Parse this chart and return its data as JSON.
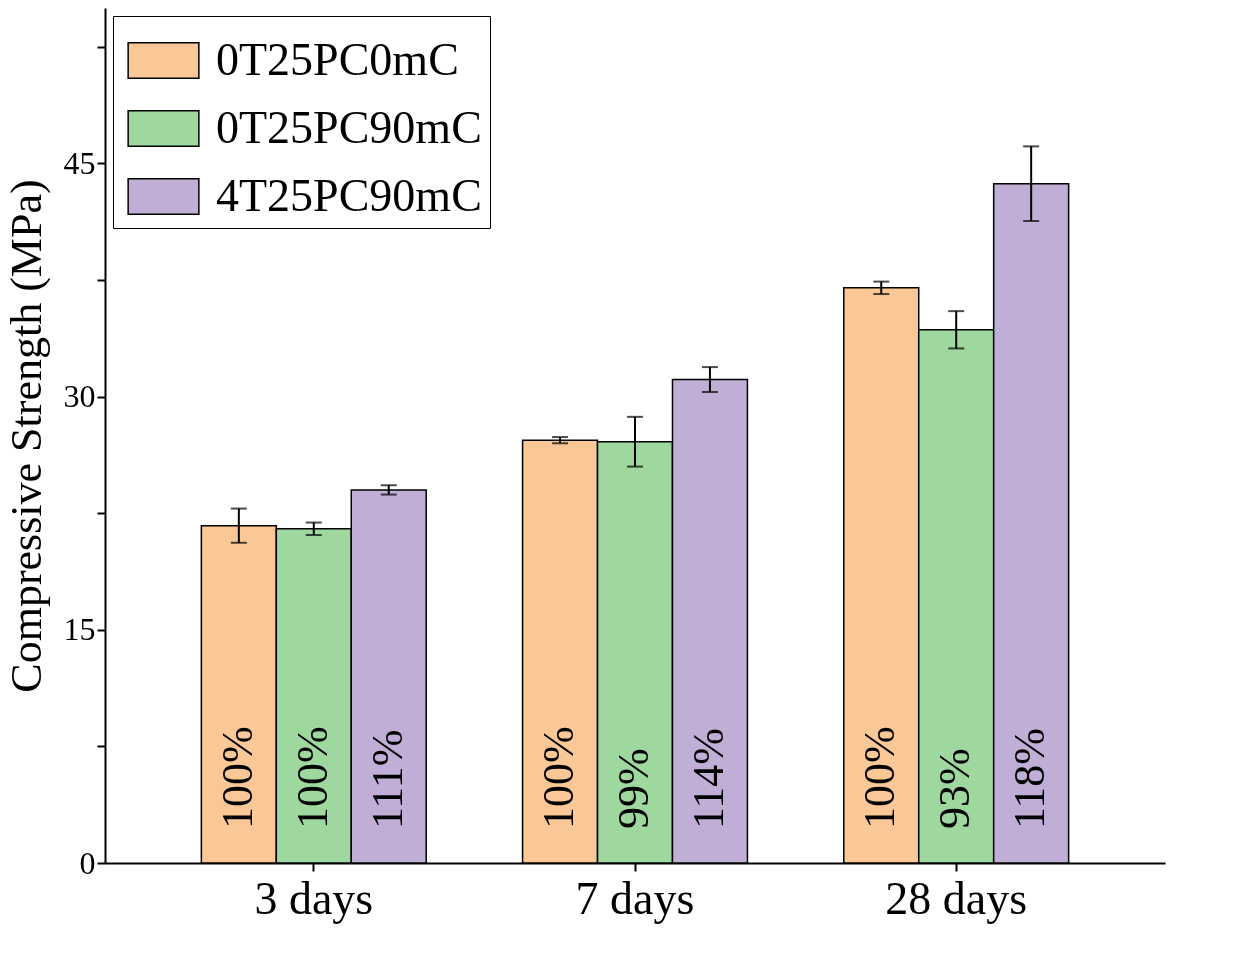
{
  "chart_data": {
    "type": "bar",
    "ylabel": "Compressive Strength (MPa)",
    "categories": [
      "3 days",
      "7 days",
      "28 days"
    ],
    "ylim": [
      0,
      55
    ],
    "yticks": [
      0,
      {
        "value": 7.5,
        "label": null
      },
      15,
      {
        "value": 22.5,
        "label": null
      },
      30,
      {
        "value": 37.5,
        "label": null
      },
      45,
      {
        "value": 52.5,
        "label": null
      }
    ],
    "grid": false,
    "legend": "top left",
    "annotations": [
      "100%",
      "100%",
      "100%",
      "100%",
      "99%",
      "93%",
      "111%",
      "114%",
      "118%"
    ],
    "series": [
      {
        "name": "0T25PC0mC",
        "color": "#f9c896",
        "values": [
          21.7,
          27.2,
          37.0
        ],
        "errors": [
          1.1,
          0.2,
          0.4
        ]
      },
      {
        "name": "0T25PC90mC",
        "color": "#9fd89e",
        "values": [
          21.5,
          27.1,
          34.3
        ],
        "errors": [
          0.4,
          1.6,
          1.2
        ]
      },
      {
        "name": "4T25PC90mC",
        "color": "#c0aed6",
        "values": [
          24.0,
          31.1,
          43.7
        ],
        "errors": [
          0.3,
          0.8,
          2.4
        ]
      }
    ]
  }
}
